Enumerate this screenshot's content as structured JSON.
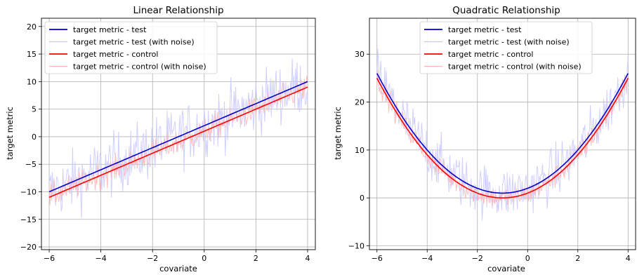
{
  "chart_data": [
    {
      "type": "line",
      "title": "Linear Relationship",
      "xlabel": "covariate",
      "ylabel": "target metric",
      "xlim": [
        -6.3,
        4.3
      ],
      "ylim": [
        -20.5,
        21.5
      ],
      "xticks": [
        -6,
        -4,
        -2,
        0,
        2,
        4
      ],
      "yticks": [
        -20,
        -15,
        -10,
        -5,
        0,
        5,
        10,
        15,
        20
      ],
      "grid": true,
      "legend_position": "top-left",
      "series": [
        {
          "name": "target metric - test",
          "color": "#0000cc",
          "kind": "line",
          "x": [
            -6,
            4
          ],
          "y": [
            -10,
            10
          ]
        },
        {
          "name": "target metric - test (with noise)",
          "color": "#c8c8ff",
          "kind": "noise",
          "x": [
            -6,
            4
          ],
          "y": [
            -10,
            10
          ],
          "noise_amplitude": 6
        },
        {
          "name": "target metric - control",
          "color": "#ff0000",
          "kind": "line",
          "x": [
            -6,
            4
          ],
          "y": [
            -11,
            9
          ]
        },
        {
          "name": "target metric - control (with noise)",
          "color": "#ffb4b4",
          "kind": "noise",
          "x": [
            -6,
            4
          ],
          "y": [
            -11,
            9
          ],
          "noise_amplitude": 2.5
        }
      ]
    },
    {
      "type": "line",
      "title": "Quadratic Relationship",
      "xlabel": "covariate",
      "ylabel": "target metric",
      "xlim": [
        -6.3,
        4.3
      ],
      "ylim": [
        -10.8,
        37.5
      ],
      "xticks": [
        -6,
        -4,
        -2,
        0,
        2,
        4
      ],
      "yticks": [
        -10,
        0,
        10,
        20,
        30
      ],
      "grid": true,
      "legend_position": "top-center",
      "series": [
        {
          "name": "target metric - test",
          "color": "#0000cc",
          "kind": "curve",
          "x_range": [
            -6,
            4
          ],
          "formula": "(x+1)^2 + 1"
        },
        {
          "name": "target metric - test (with noise)",
          "color": "#c8c8ff",
          "kind": "noise",
          "x_range": [
            -6,
            4
          ],
          "formula": "(x+1)^2 + 1",
          "noise_amplitude": 6
        },
        {
          "name": "target metric - control",
          "color": "#ff0000",
          "kind": "curve",
          "x_range": [
            -6,
            4
          ],
          "formula": "(x+1)^2"
        },
        {
          "name": "target metric - control (with noise)",
          "color": "#ffb4b4",
          "kind": "noise",
          "x_range": [
            -6,
            4
          ],
          "formula": "(x+1)^2",
          "noise_amplitude": 2.5
        }
      ]
    }
  ]
}
